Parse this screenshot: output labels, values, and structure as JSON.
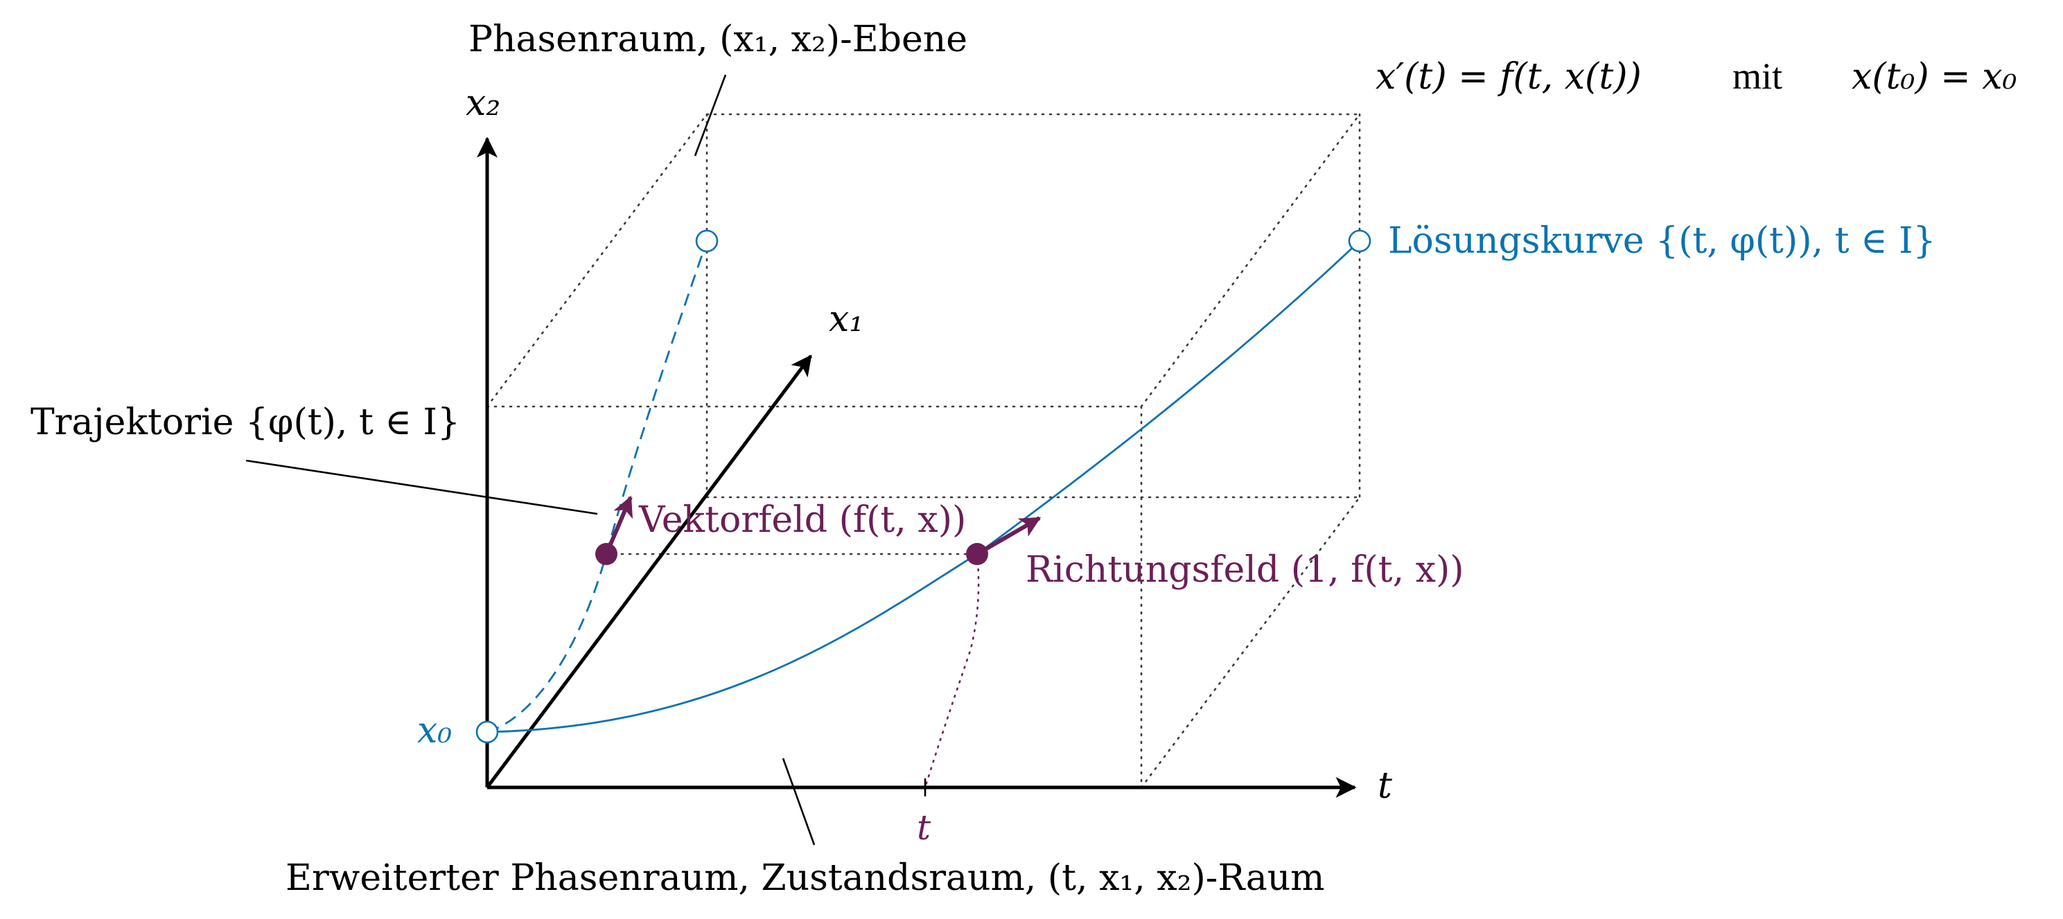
{
  "colors": {
    "axis": "#000000",
    "solution": "#0b73b0",
    "field": "#6b1f57",
    "guides": "#3a3a3a"
  },
  "axes": {
    "t": "t",
    "x1": "x₁",
    "x2": "x₂",
    "t_tick": "t"
  },
  "initial_value": "x₀",
  "equation": {
    "ode": "x′(t) = f(t, x(t))",
    "connector": "mit",
    "initial_condition": "x(t₀) = x₀"
  },
  "labels": {
    "phase_space": "Phasenraum, (x₁, x₂)-Ebene",
    "solution_curve": "Lösungskurve {(t, φ(t)), t ∈ I}",
    "trajectory": "Trajektorie {φ(t), t ∈ I}",
    "vector_field": "Vektorfeld (f(t, x))",
    "direction_field": "Richtungsfeld (1, f(t, x))",
    "extended_phase_space": "Erweiterter Phasenraum, Zustandsraum, (t, x₁, x₂)-Raum"
  }
}
